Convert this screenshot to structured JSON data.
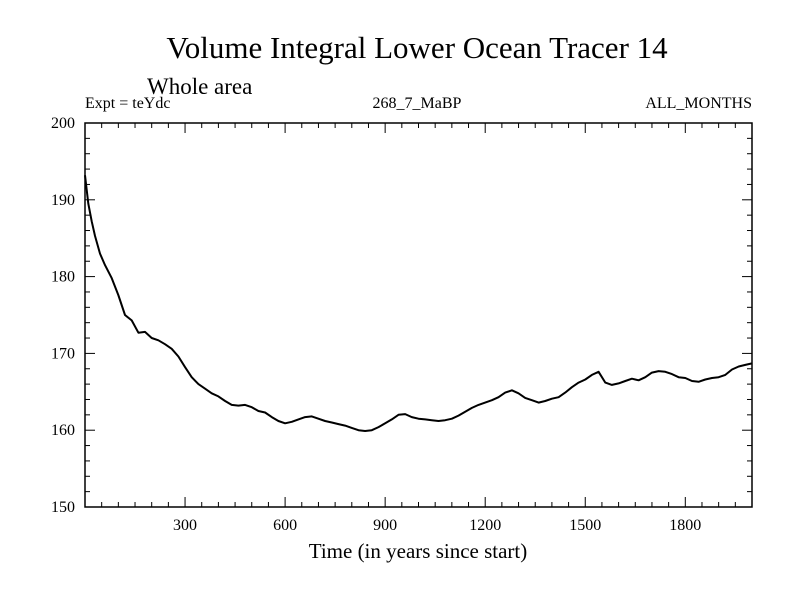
{
  "chart_data": {
    "type": "line",
    "title": "Volume Integral Lower Ocean Tracer 14",
    "subtitle": "Whole area",
    "experiment_label": "Expt = teYdc",
    "run_label": "268_7_MaBP",
    "period_label": "ALL_MONTHS",
    "xlabel": "Time (in years since start)",
    "ylabel": "",
    "xlim": [
      0,
      2000
    ],
    "ylim": [
      150,
      200
    ],
    "x_ticks": [
      300,
      600,
      900,
      1200,
      1500,
      1800
    ],
    "y_ticks": [
      150,
      160,
      170,
      180,
      190,
      200
    ],
    "grid": false,
    "series": [
      {
        "name": "Lower Ocean Tracer 14",
        "color": "#000000",
        "x": [
          0,
          10,
          20,
          30,
          45,
          60,
          80,
          100,
          120,
          140,
          160,
          180,
          200,
          220,
          240,
          260,
          280,
          300,
          320,
          340,
          360,
          380,
          400,
          420,
          440,
          460,
          480,
          500,
          520,
          540,
          560,
          580,
          600,
          620,
          640,
          660,
          680,
          700,
          720,
          740,
          760,
          780,
          800,
          820,
          840,
          860,
          880,
          900,
          920,
          940,
          960,
          980,
          1000,
          1020,
          1040,
          1060,
          1080,
          1100,
          1120,
          1140,
          1160,
          1180,
          1200,
          1220,
          1240,
          1260,
          1280,
          1300,
          1320,
          1340,
          1360,
          1380,
          1400,
          1420,
          1440,
          1460,
          1480,
          1500,
          1520,
          1540,
          1560,
          1580,
          1600,
          1620,
          1640,
          1660,
          1680,
          1700,
          1720,
          1740,
          1760,
          1780,
          1800,
          1820,
          1840,
          1860,
          1880,
          1900,
          1920,
          1940,
          1960,
          1980,
          2000
        ],
        "values": [
          193.2,
          189.5,
          187.2,
          185.3,
          183.0,
          181.5,
          179.8,
          177.6,
          175.0,
          174.3,
          172.7,
          172.8,
          172.0,
          171.7,
          171.2,
          170.6,
          169.6,
          168.2,
          166.9,
          166.0,
          165.4,
          164.8,
          164.4,
          163.8,
          163.3,
          163.2,
          163.3,
          163.0,
          162.5,
          162.3,
          161.7,
          161.2,
          160.9,
          161.1,
          161.4,
          161.7,
          161.8,
          161.5,
          161.2,
          161.0,
          160.8,
          160.6,
          160.3,
          160.0,
          159.9,
          160.0,
          160.4,
          160.9,
          161.4,
          162.0,
          162.1,
          161.7,
          161.5,
          161.4,
          161.3,
          161.2,
          161.3,
          161.5,
          161.9,
          162.4,
          162.9,
          163.3,
          163.6,
          163.9,
          164.3,
          164.9,
          165.2,
          164.8,
          164.2,
          163.9,
          163.6,
          163.8,
          164.1,
          164.3,
          164.9,
          165.6,
          166.2,
          166.6,
          167.2,
          167.6,
          166.2,
          165.9,
          166.1,
          166.4,
          166.7,
          166.5,
          166.9,
          167.5,
          167.7,
          167.6,
          167.3,
          166.9,
          166.8,
          166.4,
          166.3,
          166.6,
          166.8,
          166.9,
          167.2,
          167.9,
          168.3,
          168.5,
          168.7
        ]
      }
    ]
  }
}
